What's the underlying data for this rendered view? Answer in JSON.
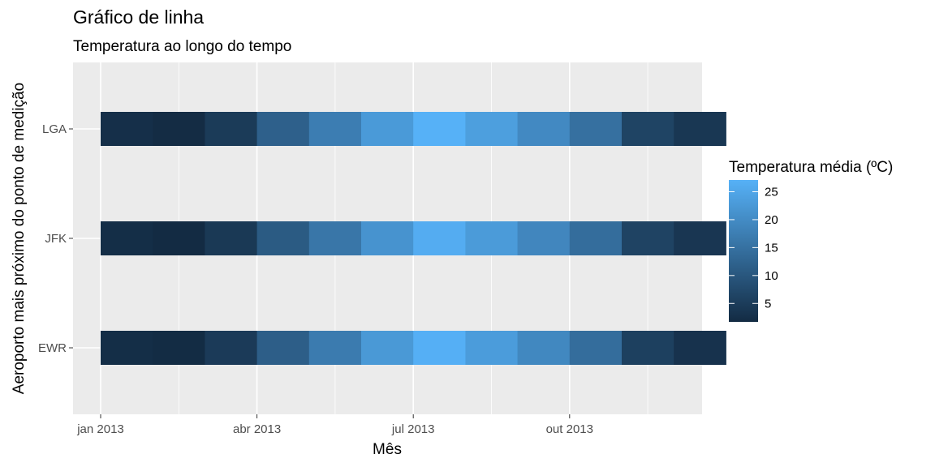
{
  "chart_data": {
    "type": "heatmap",
    "title": "Gráfico de linha",
    "subtitle": "Temperatura ao longo do tempo",
    "xlabel": "Mês",
    "ylabel": "Aeroporto mais próximo do ponto de medição",
    "x": [
      "2013-01",
      "2013-02",
      "2013-03",
      "2013-04",
      "2013-05",
      "2013-06",
      "2013-07",
      "2013-08",
      "2013-09",
      "2013-10",
      "2013-11",
      "2013-12"
    ],
    "x_tick_labels": [
      {
        "x": "2013-01",
        "label": "jan 2013"
      },
      {
        "x": "2013-04",
        "label": "abr 2013"
      },
      {
        "x": "2013-07",
        "label": "jul 2013"
      },
      {
        "x": "2013-10",
        "label": "out 2013"
      }
    ],
    "y": [
      "EWR",
      "JFK",
      "LGA"
    ],
    "series": [
      {
        "name": "EWR",
        "values": [
          2.2,
          1.8,
          4.6,
          11.4,
          16.9,
          22.5,
          26.8,
          23.1,
          19.3,
          14.2,
          5.6,
          3.1
        ]
      },
      {
        "name": "JFK",
        "values": [
          2.2,
          1.7,
          4.3,
          10.8,
          16.0,
          21.5,
          26.2,
          22.9,
          19.0,
          14.3,
          6.2,
          3.8
        ]
      },
      {
        "name": "LGA",
        "values": [
          2.5,
          1.9,
          4.7,
          11.8,
          17.3,
          22.7,
          27.1,
          23.6,
          19.6,
          14.8,
          6.4,
          3.9
        ]
      }
    ],
    "legend": {
      "title": "Temperatura média (ºC)",
      "position": "right",
      "ticks": [
        5,
        10,
        15,
        20,
        25
      ],
      "range": [
        1.7,
        27.1
      ],
      "low_color": "#132b43",
      "high_color": "#56b1f7"
    },
    "grid": true,
    "panel_background": "#ebebeb"
  }
}
